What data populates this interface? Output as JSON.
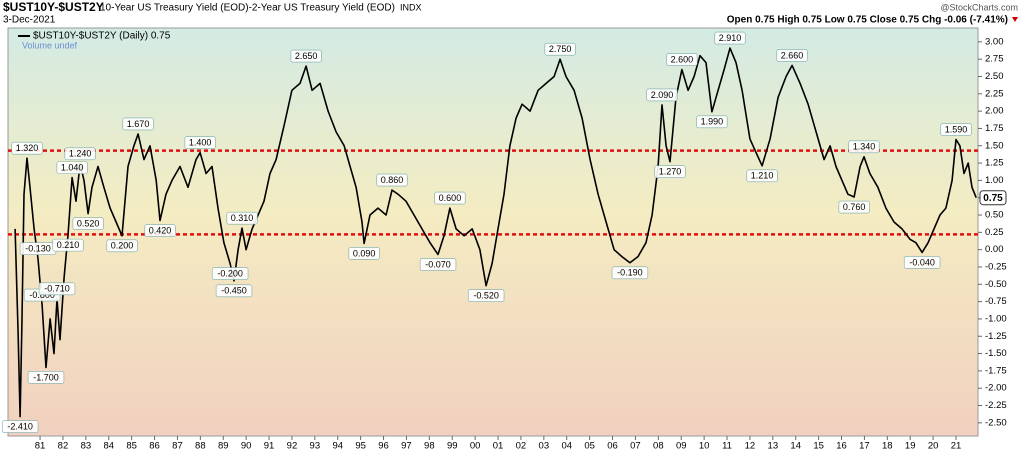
{
  "chart_data": {
    "type": "line",
    "symbol": "$UST10Y-$UST2Y",
    "title": "10-Year US Treasury Yield (EOD)-2-Year US Treasury Yield (EOD)",
    "exchange": "INDX",
    "date": "3-Dec-2021",
    "quote": "Open 0.75 High 0.75 Low 0.75 Close 0.75 Chg -0.06 (-7.41%)",
    "source": "@StockCharts.com",
    "volume_label": "Volume undef",
    "last_value": 0.75,
    "x": [
      1979.91,
      1980.04,
      1980.13,
      1980.21,
      1980.3,
      1980.43,
      1980.56,
      1980.74,
      1980.91,
      1981.09,
      1981.26,
      1981.44,
      1981.61,
      1981.74,
      1981.87,
      1982.05,
      1982.22,
      1982.4,
      1982.57,
      1982.75,
      1982.92,
      1983.1,
      1983.27,
      1983.53,
      1983.79,
      1984.06,
      1984.32,
      1984.58,
      1984.84,
      1985.1,
      1985.28,
      1985.54,
      1985.8,
      1986.07,
      1986.24,
      1986.5,
      1986.76,
      1987.11,
      1987.46,
      1987.81,
      1987.99,
      1988.25,
      1988.51,
      1988.77,
      1989.03,
      1989.3,
      1989.47,
      1989.65,
      1989.82,
      1990.0,
      1990.26,
      1990.52,
      1990.78,
      1991.04,
      1991.31,
      1991.66,
      1992.0,
      1992.35,
      1992.62,
      1992.88,
      1993.23,
      1993.58,
      1993.93,
      1994.28,
      1994.54,
      1994.8,
      1995.06,
      1995.15,
      1995.41,
      1995.76,
      1996.11,
      1996.37,
      1996.63,
      1996.98,
      1997.33,
      1997.68,
      1998.03,
      1998.38,
      1998.64,
      1998.9,
      1999.17,
      1999.52,
      1999.87,
      2000.21,
      2000.48,
      2000.74,
      2001.0,
      2001.26,
      2001.52,
      2001.79,
      2002.05,
      2002.4,
      2002.75,
      2003.1,
      2003.45,
      2003.71,
      2003.97,
      2004.32,
      2004.67,
      2005.02,
      2005.37,
      2005.72,
      2006.07,
      2006.41,
      2006.76,
      2007.11,
      2007.46,
      2007.73,
      2007.99,
      2008.16,
      2008.34,
      2008.51,
      2008.77,
      2009.03,
      2009.3,
      2009.56,
      2009.82,
      2010.08,
      2010.34,
      2010.61,
      2010.87,
      2011.13,
      2011.39,
      2011.66,
      2012.0,
      2012.27,
      2012.53,
      2012.88,
      2013.23,
      2013.58,
      2013.84,
      2014.19,
      2014.54,
      2014.89,
      2015.24,
      2015.5,
      2015.76,
      2016.02,
      2016.28,
      2016.55,
      2016.81,
      2016.98,
      2017.24,
      2017.59,
      2017.94,
      2018.29,
      2018.64,
      2018.99,
      2019.25,
      2019.52,
      2019.78,
      2020.04,
      2020.3,
      2020.56,
      2020.83,
      2021.0,
      2021.17,
      2021.35,
      2021.53,
      2021.7,
      2021.88
    ],
    "series": [
      {
        "name": "$UST10Y-$UST2Y (Daily) 0.75",
        "color": "#000000",
        "values": [
          0.3,
          -1.2,
          -2.41,
          -1.0,
          0.8,
          1.32,
          0.9,
          0.3,
          -0.13,
          -0.8,
          -1.7,
          -1.0,
          -1.5,
          -0.71,
          -1.3,
          -0.4,
          0.21,
          1.04,
          0.7,
          1.24,
          1.0,
          0.52,
          0.9,
          1.2,
          0.9,
          0.6,
          0.4,
          0.2,
          1.2,
          1.5,
          1.67,
          1.3,
          1.5,
          1.0,
          0.42,
          0.8,
          1.0,
          1.2,
          0.9,
          1.3,
          1.4,
          1.1,
          1.2,
          0.6,
          0.1,
          -0.2,
          -0.45,
          0.0,
          0.31,
          0.0,
          0.3,
          0.5,
          0.7,
          1.1,
          1.3,
          1.8,
          2.3,
          2.4,
          2.65,
          2.3,
          2.4,
          2.0,
          1.7,
          1.5,
          1.2,
          0.9,
          0.4,
          0.09,
          0.5,
          0.6,
          0.5,
          0.86,
          0.8,
          0.7,
          0.5,
          0.3,
          0.1,
          -0.07,
          0.2,
          0.6,
          0.3,
          0.2,
          0.3,
          0.0,
          -0.52,
          -0.2,
          0.3,
          0.8,
          1.5,
          1.9,
          2.1,
          2.0,
          2.3,
          2.4,
          2.5,
          2.75,
          2.5,
          2.3,
          1.9,
          1.3,
          0.8,
          0.4,
          0.0,
          -0.1,
          -0.19,
          -0.1,
          0.1,
          0.5,
          1.2,
          2.09,
          1.5,
          1.27,
          2.2,
          2.6,
          2.3,
          2.5,
          2.8,
          2.7,
          1.99,
          2.3,
          2.6,
          2.91,
          2.7,
          2.3,
          1.6,
          1.4,
          1.21,
          1.6,
          2.2,
          2.5,
          2.66,
          2.4,
          2.1,
          1.7,
          1.3,
          1.5,
          1.2,
          1.0,
          0.8,
          0.76,
          1.2,
          1.34,
          1.1,
          0.9,
          0.6,
          0.4,
          0.3,
          0.15,
          0.1,
          -0.04,
          0.1,
          0.3,
          0.5,
          0.6,
          1.0,
          1.59,
          1.5,
          1.1,
          1.25,
          0.9,
          0.75
        ]
      }
    ],
    "annotations": [
      {
        "x": 1980.13,
        "value": -2.41,
        "label": "-2.410"
      },
      {
        "x": 1980.43,
        "value": 1.32,
        "label": "1.320"
      },
      {
        "x": 1980.91,
        "value": -0.13,
        "label": "-0.130"
      },
      {
        "x": 1981.09,
        "value": -0.8,
        "label": "-0.800"
      },
      {
        "x": 1981.26,
        "value": -1.7,
        "label": "-1.700"
      },
      {
        "x": 1981.74,
        "value": -0.71,
        "label": "-0.710"
      },
      {
        "x": 1982.22,
        "value": 0.21,
        "label": "0.210"
      },
      {
        "x": 1982.4,
        "value": 1.04,
        "label": "1.040"
      },
      {
        "x": 1982.75,
        "value": 1.24,
        "label": "1.240"
      },
      {
        "x": 1983.1,
        "value": 0.52,
        "label": "0.520"
      },
      {
        "x": 1984.58,
        "value": 0.2,
        "label": "0.200"
      },
      {
        "x": 1985.28,
        "value": 1.67,
        "label": "1.670"
      },
      {
        "x": 1986.24,
        "value": 0.42,
        "label": "0.420"
      },
      {
        "x": 1987.99,
        "value": 1.4,
        "label": "1.400"
      },
      {
        "x": 1989.3,
        "value": -0.2,
        "label": "-0.200"
      },
      {
        "x": 1989.47,
        "value": -0.45,
        "label": "-0.450"
      },
      {
        "x": 1989.82,
        "value": 0.31,
        "label": "0.310"
      },
      {
        "x": 1992.62,
        "value": 2.65,
        "label": "2.650"
      },
      {
        "x": 1995.15,
        "value": 0.09,
        "label": "0.090"
      },
      {
        "x": 1996.37,
        "value": 0.86,
        "label": "0.860"
      },
      {
        "x": 1998.38,
        "value": -0.07,
        "label": "-0.070"
      },
      {
        "x": 1998.9,
        "value": 0.6,
        "label": "0.600"
      },
      {
        "x": 2000.48,
        "value": -0.52,
        "label": "-0.520"
      },
      {
        "x": 2003.71,
        "value": 2.75,
        "label": "2.750"
      },
      {
        "x": 2006.76,
        "value": -0.19,
        "label": "-0.190"
      },
      {
        "x": 2008.16,
        "value": 2.09,
        "label": "2.090"
      },
      {
        "x": 2008.51,
        "value": 1.27,
        "label": "1.270"
      },
      {
        "x": 2009.03,
        "value": 2.6,
        "label": "2.600"
      },
      {
        "x": 2010.34,
        "value": 1.99,
        "label": "1.990"
      },
      {
        "x": 2011.13,
        "value": 2.91,
        "label": "2.910"
      },
      {
        "x": 2012.53,
        "value": 1.21,
        "label": "1.210"
      },
      {
        "x": 2013.84,
        "value": 2.66,
        "label": "2.660"
      },
      {
        "x": 2016.55,
        "value": 0.76,
        "label": "0.760"
      },
      {
        "x": 2016.98,
        "value": 1.34,
        "label": "1.340"
      },
      {
        "x": 2019.52,
        "value": -0.04,
        "label": "-0.040"
      },
      {
        "x": 2021.0,
        "value": 1.59,
        "label": "1.590"
      }
    ],
    "reference_lines": [
      1.43,
      0.22
    ],
    "reference_color": "#e01010",
    "xlim": [
      1979.6,
      2021.96
    ],
    "ylim": [
      -2.69,
      3.2
    ],
    "xticks": [
      {
        "value": 1981,
        "label": "81"
      },
      {
        "value": 1982,
        "label": "82"
      },
      {
        "value": 1983,
        "label": "83"
      },
      {
        "value": 1984,
        "label": "84"
      },
      {
        "value": 1985,
        "label": "85"
      },
      {
        "value": 1986,
        "label": "86"
      },
      {
        "value": 1987,
        "label": "87"
      },
      {
        "value": 1988,
        "label": "88"
      },
      {
        "value": 1989,
        "label": "89"
      },
      {
        "value": 1990,
        "label": "90"
      },
      {
        "value": 1991,
        "label": "91"
      },
      {
        "value": 1992,
        "label": "92"
      },
      {
        "value": 1993,
        "label": "93"
      },
      {
        "value": 1994,
        "label": "94"
      },
      {
        "value": 1995,
        "label": "95"
      },
      {
        "value": 1996,
        "label": "96"
      },
      {
        "value": 1997,
        "label": "97"
      },
      {
        "value": 1998,
        "label": "98"
      },
      {
        "value": 1999,
        "label": "99"
      },
      {
        "value": 2000,
        "label": "00"
      },
      {
        "value": 2001,
        "label": "01"
      },
      {
        "value": 2002,
        "label": "02"
      },
      {
        "value": 2003,
        "label": "03"
      },
      {
        "value": 2004,
        "label": "04"
      },
      {
        "value": 2005,
        "label": "05"
      },
      {
        "value": 2006,
        "label": "06"
      },
      {
        "value": 2007,
        "label": "07"
      },
      {
        "value": 2008,
        "label": "08"
      },
      {
        "value": 2009,
        "label": "09"
      },
      {
        "value": 2010,
        "label": "10"
      },
      {
        "value": 2011,
        "label": "11"
      },
      {
        "value": 2012,
        "label": "12"
      },
      {
        "value": 2013,
        "label": "13"
      },
      {
        "value": 2014,
        "label": "14"
      },
      {
        "value": 2015,
        "label": "15"
      },
      {
        "value": 2016,
        "label": "16"
      },
      {
        "value": 2017,
        "label": "17"
      },
      {
        "value": 2018,
        "label": "18"
      },
      {
        "value": 2019,
        "label": "19"
      },
      {
        "value": 2020,
        "label": "20"
      },
      {
        "value": 2021,
        "label": "21"
      }
    ],
    "yticks": [
      {
        "value": 3,
        "label": "3.00"
      },
      2.75,
      {
        "value": 2.5,
        "label": "2.50"
      },
      2.25,
      {
        "value": 2,
        "label": "2.00"
      },
      1.75,
      {
        "value": 1.5,
        "label": "1.50"
      },
      1.25,
      {
        "value": 1,
        "label": "1.00"
      },
      0.75,
      {
        "value": 0.5,
        "label": "0.50"
      },
      0.25,
      {
        "value": 0,
        "label": "0.00"
      },
      -0.25,
      {
        "value": -0.5,
        "label": "-0.50"
      },
      -0.75,
      {
        "value": -1,
        "label": "-1.00"
      },
      -1.25,
      {
        "value": -1.5,
        "label": "-1.50"
      },
      -1.75,
      {
        "value": -2,
        "label": "-2.00"
      },
      -2.25,
      {
        "value": -2.5,
        "label": "-2.50"
      }
    ]
  }
}
